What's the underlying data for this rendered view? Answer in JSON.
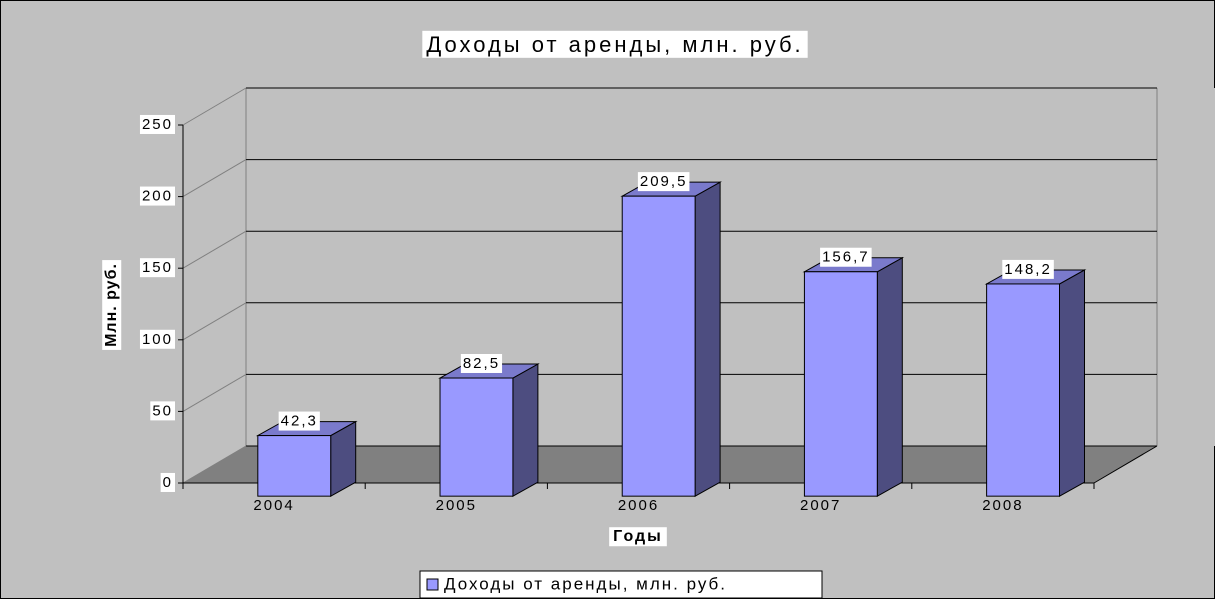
{
  "chart_data": {
    "type": "bar3d",
    "title": "Доходы от аренды, млн. руб.",
    "x_label": "Годы",
    "y_label": "Млн. руб.",
    "categories": [
      "2004",
      "2005",
      "2006",
      "2007",
      "2008"
    ],
    "series": [
      {
        "name": "Доходы от аренды, млн. руб.",
        "color": "#9999ff",
        "values": [
          42.3,
          82.5,
          209.5,
          156.7,
          148.2
        ],
        "value_labels": [
          "42,3",
          "82,5",
          "209,5",
          "156,7",
          "148,2"
        ]
      }
    ],
    "ylim": [
      0,
      250
    ],
    "yticks": [
      0,
      50,
      100,
      150,
      200,
      250
    ],
    "grid": true,
    "legend": "bottom"
  }
}
